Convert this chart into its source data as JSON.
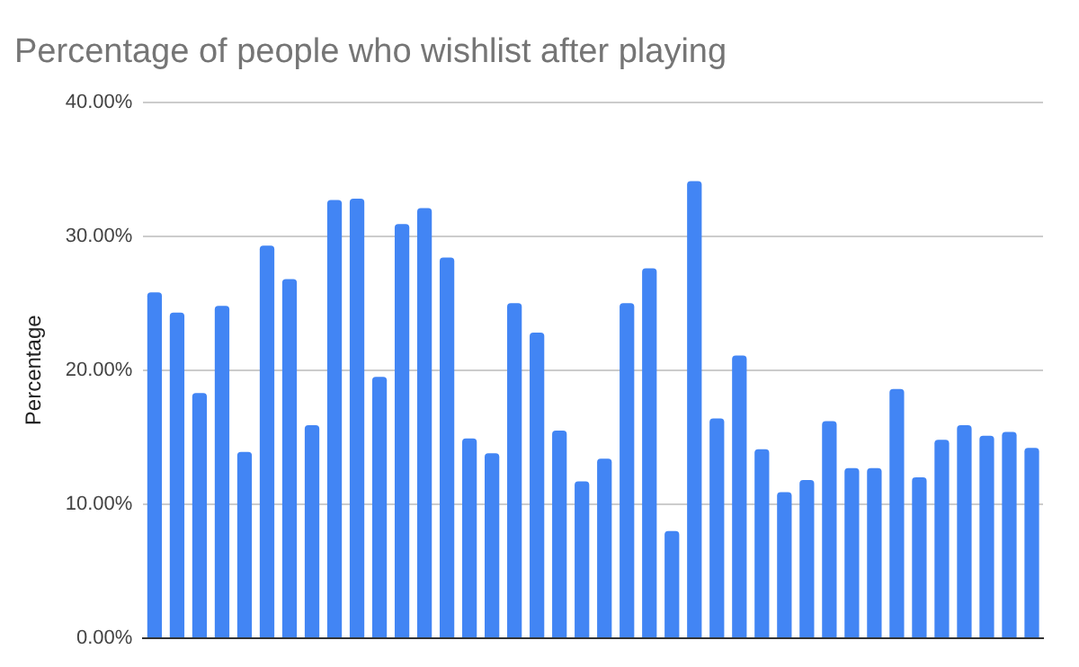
{
  "chart_data": {
    "type": "bar",
    "title": "Percentage of people who wishlist after playing",
    "ylabel": "Percentage",
    "categories": [
      null,
      null,
      null,
      null,
      null,
      null,
      null,
      null,
      null,
      null,
      null,
      null,
      null,
      null,
      null,
      null,
      null,
      null,
      null,
      null,
      null,
      null,
      null,
      null,
      null,
      null,
      null,
      null,
      null,
      null,
      null,
      null,
      null,
      null,
      null,
      null,
      null,
      null,
      null,
      null
    ],
    "values": [
      25.8,
      24.3,
      18.3,
      24.8,
      13.9,
      29.3,
      26.8,
      15.9,
      32.7,
      32.8,
      19.5,
      30.9,
      32.1,
      28.4,
      14.9,
      13.8,
      25.0,
      22.8,
      15.5,
      11.7,
      13.4,
      25.0,
      27.6,
      8.0,
      34.1,
      16.4,
      21.1,
      14.1,
      10.9,
      11.8,
      16.2,
      12.7,
      12.7,
      18.6,
      12.0,
      14.8,
      15.9,
      15.1,
      15.4,
      14.2
    ],
    "color": "#4285f4",
    "ylim": [
      0,
      40
    ],
    "yticks": [
      {
        "value": 0,
        "label": "0.00%"
      },
      {
        "value": 10,
        "label": "10.00%"
      },
      {
        "value": 20,
        "label": "20.00%"
      },
      {
        "value": 30,
        "label": "30.00%"
      },
      {
        "value": 40,
        "label": "40.00%"
      }
    ],
    "grid": "y",
    "tick_labels": "y"
  }
}
